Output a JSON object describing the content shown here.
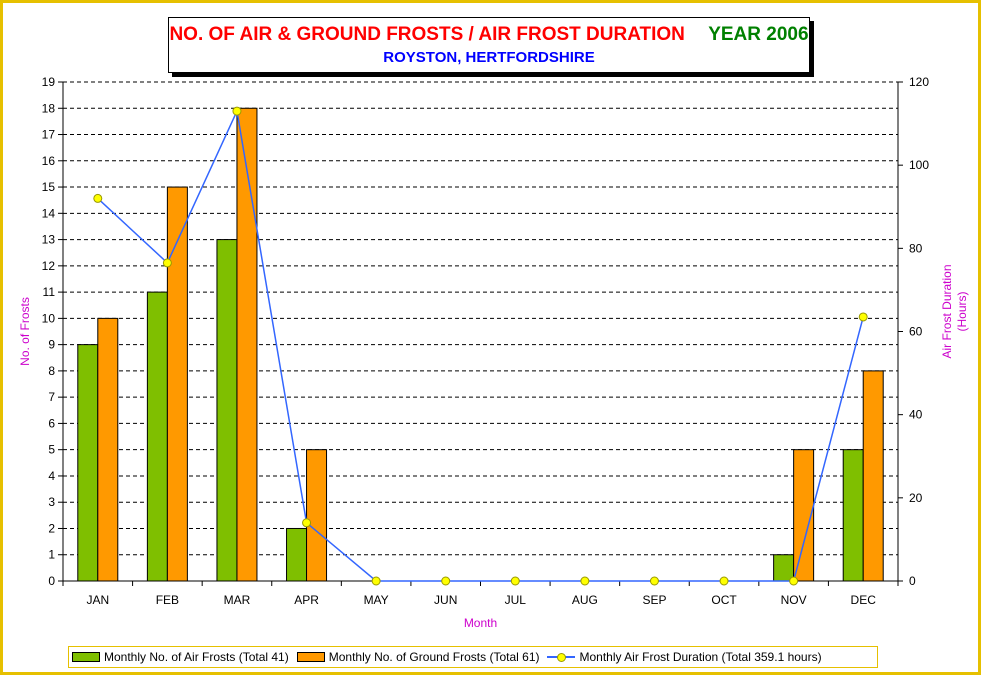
{
  "title": {
    "main": "NO. OF AIR & GROUND FROSTS / AIR FROST DURATION",
    "year": "YEAR 2006",
    "subtitle": "ROYSTON, HERTFORDSHIRE"
  },
  "colors": {
    "frame": "#e6c000",
    "air_frost_bar": "#7fbf00",
    "ground_frost_bar": "#ff9900",
    "duration_line": "#3366ff",
    "duration_marker": "#ffff00",
    "axis_title": "#cc00cc"
  },
  "legend": {
    "items": [
      {
        "label": "Monthly No. of Air Frosts (Total 41)",
        "kind": "bar",
        "color": "#7fbf00"
      },
      {
        "label": "Monthly No. of Ground Frosts (Total 61)",
        "kind": "bar",
        "color": "#ff9900"
      },
      {
        "label": "Monthly Air Frost Duration (Total 359.1 hours)",
        "kind": "line",
        "color": "#3366ff"
      }
    ]
  },
  "chart_data": {
    "type": "bar",
    "categories": [
      "JAN",
      "FEB",
      "MAR",
      "APR",
      "MAY",
      "JUN",
      "JUL",
      "AUG",
      "SEP",
      "OCT",
      "NOV",
      "DEC"
    ],
    "series": [
      {
        "name": "Monthly No. of Air Frosts (Total 41)",
        "type": "bar",
        "axis": "left",
        "values": [
          9,
          11,
          13,
          2,
          0,
          0,
          0,
          0,
          0,
          0,
          1,
          5
        ]
      },
      {
        "name": "Monthly No. of Ground Frosts (Total 61)",
        "type": "bar",
        "axis": "left",
        "values": [
          10,
          15,
          18,
          5,
          0,
          0,
          0,
          0,
          0,
          0,
          5,
          8
        ]
      },
      {
        "name": "Monthly Air Frost Duration (Total 359.1 hours)",
        "type": "line",
        "axis": "right",
        "values": [
          92,
          76.5,
          113,
          14,
          0,
          0,
          0,
          0,
          0,
          0,
          0,
          63.5
        ]
      }
    ],
    "xlabel": "Month",
    "ylabel": "No. of Frosts",
    "y2label": [
      "Air Frost Duration",
      "(Hours)"
    ],
    "ylim": [
      0,
      19
    ],
    "y2lim": [
      0,
      120
    ],
    "yticks": [
      0,
      1,
      2,
      3,
      4,
      5,
      6,
      7,
      8,
      9,
      10,
      11,
      12,
      13,
      14,
      15,
      16,
      17,
      18,
      19
    ],
    "y2ticks": [
      0,
      20,
      40,
      60,
      80,
      100,
      120
    ],
    "grid": true,
    "legend_position": "bottom"
  }
}
